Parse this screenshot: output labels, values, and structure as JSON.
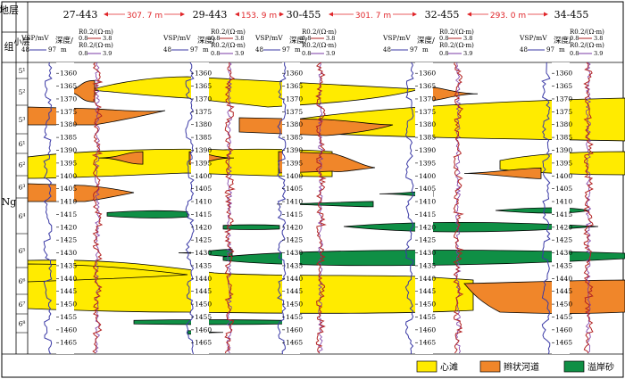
{
  "header": {
    "col_formation": "地层",
    "col_group": "组",
    "col_sublayer": "小层"
  },
  "wells": [
    {
      "name": "27-443"
    },
    {
      "name": "29-443"
    },
    {
      "name": "30-455"
    },
    {
      "name": "32-455"
    },
    {
      "name": "34-455"
    }
  ],
  "distances": [
    "307. 7 m",
    "153. 9 m",
    "301. 7 m",
    "293. 0 m"
  ],
  "log_headers": {
    "sp_label": "VSP/mV",
    "sp_scale_min": "48",
    "sp_scale_max": "97",
    "depth_label": "深度/",
    "depth_unit": "m",
    "r1_label": "R0.2/(Ω·m)",
    "r2_label": "R0.2/(Ω·m)",
    "r_scale_min": "0.8",
    "r_scale_max": "3.8",
    "r2_scale_max": "3.9"
  },
  "group": "Ng",
  "sublayers": [
    "5¹",
    "5²",
    "5³",
    "6¹",
    "6²",
    "6³",
    "6⁴",
    "6⁵",
    "6⁶",
    "6⁷",
    "6⁸"
  ],
  "depth_ticks": [
    "1360",
    "1365",
    "1370",
    "1375",
    "1380",
    "1385",
    "1390",
    "1395",
    "1400",
    "1405",
    "1410",
    "1415",
    "1420",
    "1425",
    "1430",
    "1435",
    "1440",
    "1445",
    "1450",
    "1455",
    "1460",
    "1465"
  ],
  "legend": [
    {
      "label": "心滩",
      "color": "#ffeb00"
    },
    {
      "label": "辫状河道",
      "color": "#f0862a"
    },
    {
      "label": "溢岸砂",
      "color": "#0f8f45"
    }
  ]
}
